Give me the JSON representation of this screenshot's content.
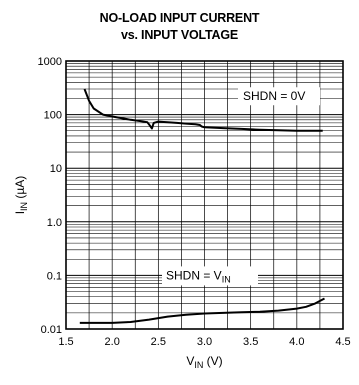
{
  "chart_data": {
    "type": "line",
    "title_line1": "NO-LOAD INPUT CURRENT",
    "title_line2": "vs. INPUT VOLTAGE",
    "xlabel_main": "V",
    "xlabel_sub": "IN",
    "xlabel_unit": " (V)",
    "ylabel_main": "I",
    "ylabel_sub": "IN",
    "ylabel_unit": " (µA)",
    "xlim": [
      1.5,
      4.5
    ],
    "ylim": [
      0.01,
      1000
    ],
    "yscale": "log",
    "grid": true,
    "x_ticks": [
      1.5,
      2.0,
      2.5,
      3.0,
      3.5,
      4.0,
      4.5
    ],
    "x_tick_labels": [
      "1.5",
      "2.0",
      "2.5",
      "3.0",
      "3.5",
      "4.0",
      "4.5"
    ],
    "y_ticks": [
      0.01,
      0.1,
      1,
      10,
      100,
      1000
    ],
    "y_tick_labels": [
      "0.01",
      "0.1",
      "1.0",
      "10",
      "100",
      "1000"
    ],
    "series": [
      {
        "name": "SHDN = 0V",
        "label_main": "SHDN = 0V",
        "points": [
          [
            1.7,
            300
          ],
          [
            1.75,
            180
          ],
          [
            1.8,
            130
          ],
          [
            1.9,
            100
          ],
          [
            2.0,
            92
          ],
          [
            2.1,
            86
          ],
          [
            2.2,
            80
          ],
          [
            2.3,
            76
          ],
          [
            2.38,
            72
          ],
          [
            2.41,
            62
          ],
          [
            2.43,
            55
          ],
          [
            2.45,
            70
          ],
          [
            2.5,
            74
          ],
          [
            2.6,
            72
          ],
          [
            2.7,
            70
          ],
          [
            2.8,
            68
          ],
          [
            2.9,
            66
          ],
          [
            2.95,
            64
          ],
          [
            2.97,
            60
          ],
          [
            3.0,
            58
          ],
          [
            3.2,
            56
          ],
          [
            3.4,
            54
          ],
          [
            3.6,
            52
          ],
          [
            3.8,
            51
          ],
          [
            4.0,
            50
          ],
          [
            4.2,
            50
          ],
          [
            4.28,
            50
          ]
        ]
      },
      {
        "name": "SHDN = VIN",
        "label_main": "SHDN = V",
        "label_sub": "IN",
        "points": [
          [
            1.65,
            0.013
          ],
          [
            1.8,
            0.013
          ],
          [
            2.0,
            0.013
          ],
          [
            2.2,
            0.0135
          ],
          [
            2.4,
            0.015
          ],
          [
            2.6,
            0.017
          ],
          [
            2.8,
            0.0185
          ],
          [
            3.0,
            0.0195
          ],
          [
            3.2,
            0.02
          ],
          [
            3.4,
            0.0205
          ],
          [
            3.6,
            0.021
          ],
          [
            3.8,
            0.022
          ],
          [
            4.0,
            0.024
          ],
          [
            4.1,
            0.026
          ],
          [
            4.2,
            0.03
          ],
          [
            4.3,
            0.037
          ]
        ]
      }
    ]
  }
}
